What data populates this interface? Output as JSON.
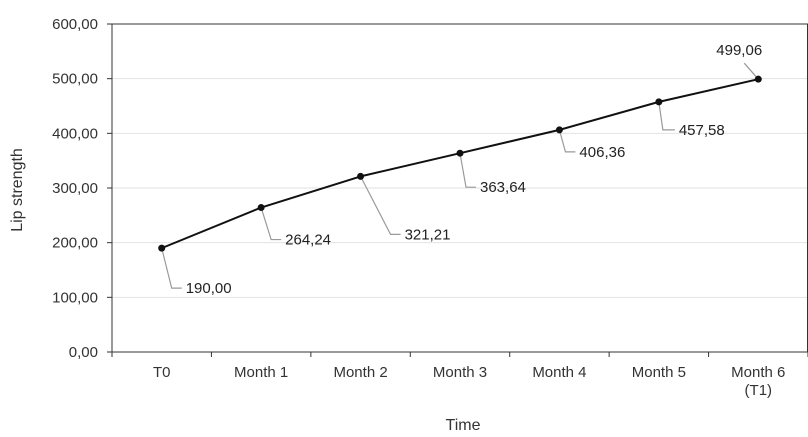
{
  "chart_data": {
    "type": "line",
    "title": "",
    "xlabel": "Time",
    "ylabel": "Lip strength",
    "ylim": [
      0,
      600
    ],
    "yticks": [
      "0,00",
      "100,00",
      "200,00",
      "300,00",
      "400,00",
      "500,00",
      "600,00"
    ],
    "grid": true,
    "legend": "none",
    "categories": [
      [
        "T0"
      ],
      [
        "Month 1"
      ],
      [
        "Month 2"
      ],
      [
        "Month 3"
      ],
      [
        "Month 4"
      ],
      [
        "Month 5"
      ],
      [
        "Month 6",
        "(T1)"
      ]
    ],
    "series": [
      {
        "values": [
          190.0,
          264.24,
          321.21,
          363.64,
          406.36,
          457.58,
          499.06
        ],
        "labels": [
          "190,00",
          "264,24",
          "321,21",
          "363,64",
          "406,36",
          "457,58",
          "499,06"
        ],
        "color": "#111111"
      }
    ]
  }
}
